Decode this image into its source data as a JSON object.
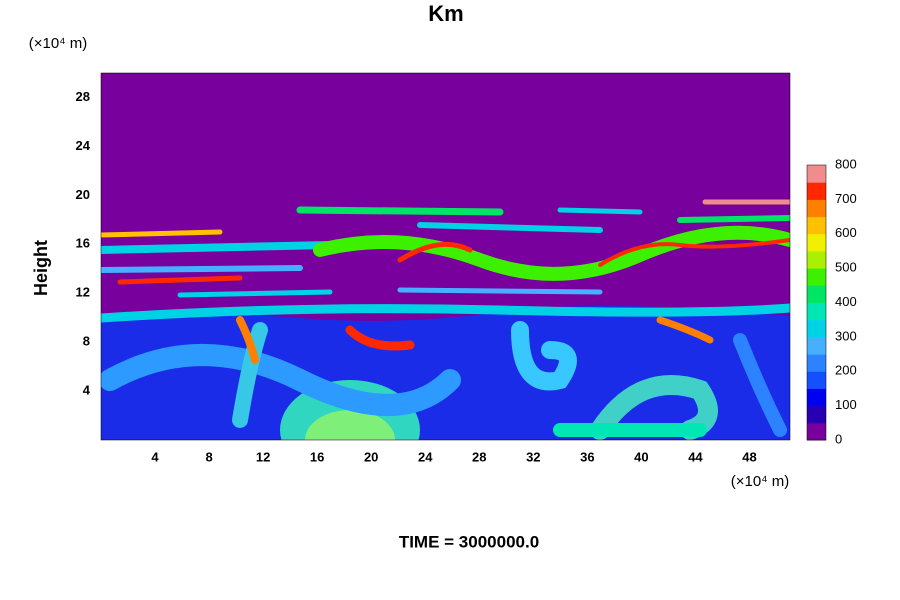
{
  "chart_data": {
    "type": "heatmap",
    "title": "Km",
    "y_label": "Height",
    "y_unit": "(×10⁴ m)",
    "x_unit": "(×10⁴ m)",
    "footer": "TIME = 3000000.0",
    "xlim": [
      0,
      51
    ],
    "xticks": [
      4,
      8,
      12,
      16,
      20,
      24,
      28,
      32,
      36,
      40,
      44,
      48
    ],
    "ylim": [
      0,
      30
    ],
    "yticks": [
      4,
      8,
      12,
      16,
      20,
      24,
      28
    ],
    "colorbar": {
      "lim": [
        0,
        800
      ],
      "ticks": [
        0,
        100,
        200,
        300,
        400,
        500,
        600,
        700,
        800
      ],
      "colors": [
        "#78009c",
        "#2800b4",
        "#0000f0",
        "#1450ff",
        "#2c82ff",
        "#46b0ff",
        "#00d2e6",
        "#00e6b4",
        "#00e664",
        "#3cf000",
        "#aaf000",
        "#f0f000",
        "#ffc000",
        "#ff8000",
        "#ff2800",
        "#f08c8c"
      ]
    }
  }
}
